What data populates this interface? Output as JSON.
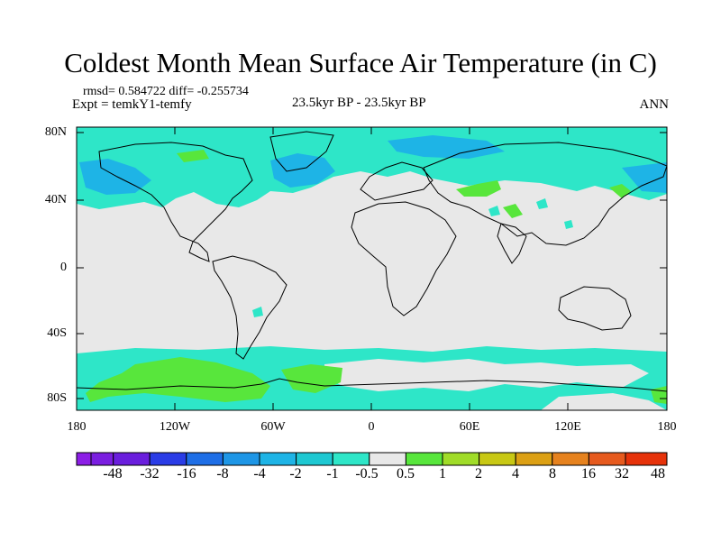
{
  "title": "Coldest Month Mean Surface Air Temperature (in C)",
  "stats": "rmsd= 0.584722  diff= -0.255734",
  "expt": "Expt = temkY1-temfy",
  "period": "23.5kyr BP - 23.5kyr BP",
  "season": "ANN",
  "map": {
    "lat_labels": [
      "80N",
      "40N",
      "0",
      "40S",
      "80S"
    ],
    "lon_labels": [
      "180",
      "120W",
      "60W",
      "0",
      "60E",
      "120E",
      "180"
    ],
    "background_color": "#e8e8e8"
  },
  "colorbar": {
    "labels": [
      "-48",
      "-32",
      "-16",
      "-8",
      "-4",
      "-2",
      "-1",
      "-0.5",
      "0.5",
      "1",
      "2",
      "4",
      "8",
      "16",
      "32",
      "48"
    ],
    "colors": [
      "#8c1ee6",
      "#6a1edd",
      "#2a3ce6",
      "#1e6ee6",
      "#1e96e6",
      "#1eb4e6",
      "#1ec8d2",
      "#2ee6c8",
      "#e8e8e8",
      "#58e63c",
      "#a0dc28",
      "#c8c814",
      "#dca014",
      "#e6821e",
      "#e65a1e",
      "#e6320a"
    ]
  }
}
